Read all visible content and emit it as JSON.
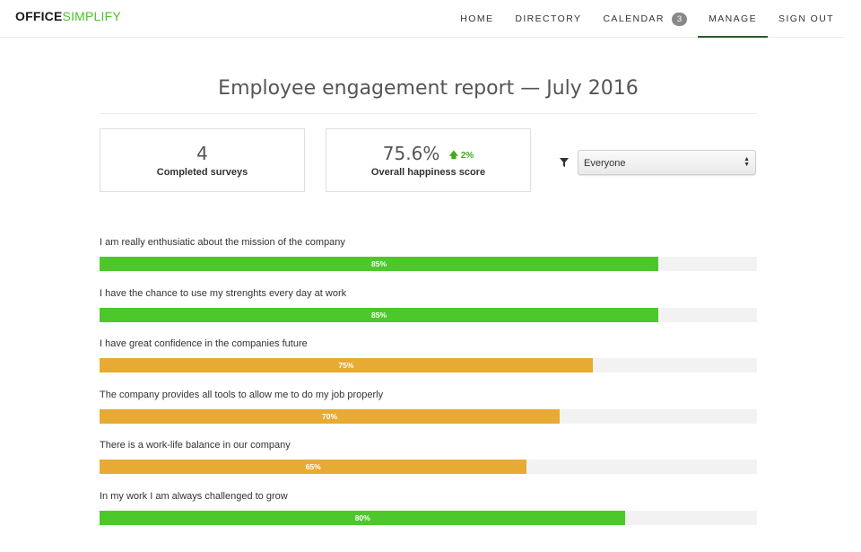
{
  "brand": {
    "part1": "OFFICE",
    "part2": "SIMPLIFY"
  },
  "nav": {
    "home": "HOME",
    "directory": "DIRECTORY",
    "calendar": "CALENDAR",
    "calendar_badge": "3",
    "manage": "MANAGE",
    "sign_out": "SIGN OUT",
    "active": "MANAGE"
  },
  "page": {
    "title": "Employee engagement report — July 2016"
  },
  "stats": {
    "completed": {
      "value": "4",
      "label": "Completed surveys"
    },
    "happiness": {
      "value": "75.6%",
      "change": "2%",
      "change_direction": "up",
      "label": "Overall happiness score"
    }
  },
  "filter": {
    "icon": "filter-icon",
    "selected": "Everyone"
  },
  "colors": {
    "high": "#4cc82b",
    "medium": "#e7ab33",
    "track": "#f2f2f2",
    "brand_accent": "#4cc22b"
  },
  "questions": [
    {
      "label": "I am really enthusiatic about the mission of the company",
      "value": 85,
      "value_label": "85%",
      "level": "high"
    },
    {
      "label": "I have the chance to use my strenghts every day at work",
      "value": 85,
      "value_label": "85%",
      "level": "high"
    },
    {
      "label": "I have great confidence in the companies future",
      "value": 75,
      "value_label": "75%",
      "level": "medium"
    },
    {
      "label": "The company provides all tools to allow me to do my job properly",
      "value": 70,
      "value_label": "70%",
      "level": "medium"
    },
    {
      "label": "There is a work-life balance in our company",
      "value": 65,
      "value_label": "65%",
      "level": "medium"
    },
    {
      "label": "In my work I am always challenged to grow",
      "value": 80,
      "value_label": "80%",
      "level": "high"
    }
  ]
}
